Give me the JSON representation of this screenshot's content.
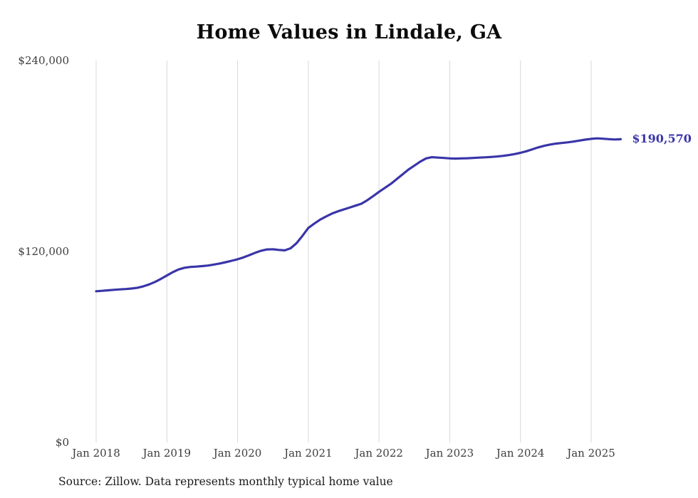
{
  "title": "Home Values in Lindale, GA",
  "end_label": "$190,570",
  "source": "Source: Zillow. Data represents monthly typical home value",
  "colors": {
    "line": "#3a35a8",
    "grid": "#d8d8d8",
    "axis_text": "#3d3d3d",
    "title_text": "#0b0b0b"
  },
  "chart_data": {
    "type": "line",
    "title": "Home Values in Lindale, GA",
    "series": [
      {
        "name": "Typical home value",
        "start_month": "2018-01",
        "frequency": "monthly",
        "values": [
          95000,
          95300,
          95600,
          95900,
          96200,
          96400,
          96700,
          97200,
          98100,
          99300,
          100900,
          102800,
          104900,
          107000,
          108700,
          109800,
          110300,
          110500,
          110800,
          111200,
          111800,
          112500,
          113300,
          114200,
          115100,
          116300,
          117700,
          119200,
          120500,
          121300,
          121400,
          121000,
          120700,
          122000,
          125200,
          129800,
          134800,
          137500,
          140000,
          142000,
          143800,
          145200,
          146400,
          147600,
          148800,
          150000,
          152200,
          154800,
          157500,
          160000,
          162500,
          165500,
          168500,
          171500,
          174000,
          176500,
          178500,
          179300,
          179000,
          178800,
          178500,
          178400,
          178500,
          178600,
          178800,
          179000,
          179200,
          179400,
          179700,
          180100,
          180600,
          181200,
          182000,
          183000,
          184200,
          185400,
          186400,
          187200,
          187800,
          188200,
          188600,
          189100,
          189700,
          190300,
          190800,
          191100,
          190900,
          190600,
          190400,
          190570
        ]
      }
    ],
    "end_value": 190570,
    "x_tick_labels": [
      "Jan 2018",
      "Jan 2019",
      "Jan 2020",
      "Jan 2021",
      "Jan 2022",
      "Jan 2023",
      "Jan 2024",
      "Jan 2025"
    ],
    "y_ticks": [
      0,
      120000,
      240000
    ],
    "y_tick_labels": [
      "$0",
      "$120,000",
      "$240,000"
    ],
    "ylim": [
      0,
      240000
    ],
    "grid": "vertical-only",
    "legend": "none",
    "annotation": "$190,570"
  }
}
